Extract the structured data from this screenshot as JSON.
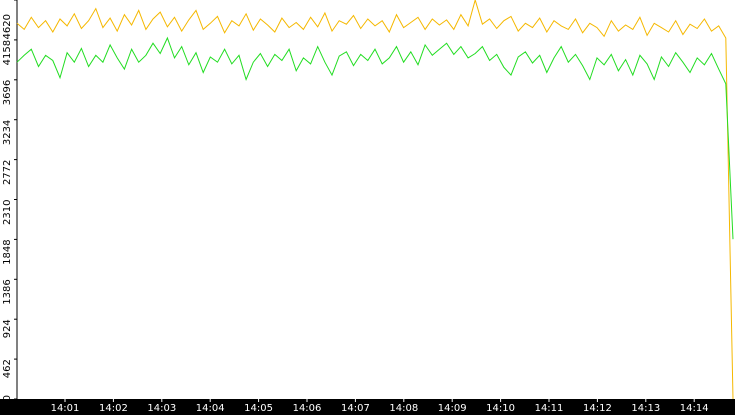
{
  "chart_data": {
    "type": "line",
    "xticks": [
      "14:01",
      "14:02",
      "14:03",
      "14:04",
      "14:05",
      "14:06",
      "14:07",
      "14:08",
      "14:09",
      "14:10",
      "14:11",
      "14:12",
      "14:13",
      "14:14"
    ],
    "ylim": [
      0,
      4620
    ],
    "yticks": [
      0,
      462,
      924,
      1386,
      1848,
      2310,
      2772,
      3234,
      3696,
      4158,
      4620
    ],
    "series": [
      {
        "color": "#f5b800",
        "values": [
          4350,
          4280,
          4420,
          4300,
          4380,
          4250,
          4400,
          4320,
          4460,
          4290,
          4380,
          4520,
          4300,
          4410,
          4260,
          4450,
          4330,
          4500,
          4280,
          4400,
          4480,
          4310,
          4420,
          4260,
          4390,
          4500,
          4280,
          4350,
          4430,
          4240,
          4380,
          4320,
          4460,
          4270,
          4400,
          4330,
          4250,
          4410,
          4300,
          4360,
          4280,
          4420,
          4310,
          4470,
          4260,
          4380,
          4340,
          4440,
          4290,
          4400,
          4320,
          4380,
          4250,
          4450,
          4300,
          4360,
          4420,
          4280,
          4400,
          4330,
          4390,
          4280,
          4450,
          4320,
          4620,
          4340,
          4400,
          4290,
          4380,
          4430,
          4260,
          4350,
          4300,
          4410,
          4250,
          4380,
          4320,
          4280,
          4400,
          4240,
          4350,
          4300,
          4200,
          4380,
          4260,
          4330,
          4280,
          4420,
          4210,
          4350,
          4300,
          4250,
          4380,
          4220,
          4340,
          4290,
          4400,
          4260,
          4320,
          4180,
          0
        ]
      },
      {
        "color": "#22dd22",
        "values": [
          3900,
          3980,
          4050,
          3850,
          3980,
          3920,
          3720,
          4010,
          3900,
          4060,
          3850,
          3980,
          3900,
          4100,
          3950,
          3820,
          4050,
          3900,
          3980,
          4120,
          4000,
          4180,
          3950,
          4080,
          3870,
          4010,
          3780,
          3960,
          3900,
          4050,
          3880,
          3980,
          3700,
          3900,
          4000,
          3850,
          3990,
          3920,
          4050,
          3800,
          3950,
          3880,
          4080,
          3900,
          3750,
          3970,
          4020,
          3860,
          3990,
          3920,
          4050,
          3880,
          3950,
          4080,
          3900,
          4020,
          3870,
          4100,
          3980,
          4050,
          4120,
          3990,
          4080,
          3950,
          4000,
          4080,
          3920,
          3990,
          3840,
          3750,
          3960,
          4020,
          3890,
          3980,
          3780,
          3950,
          4080,
          3900,
          3990,
          3860,
          3700,
          3950,
          3870,
          3990,
          3800,
          3930,
          3750,
          3980,
          3880,
          3700,
          3960,
          3850,
          4010,
          3900,
          3780,
          3950,
          3870,
          4000,
          3820,
          3650,
          1850
        ]
      }
    ]
  }
}
